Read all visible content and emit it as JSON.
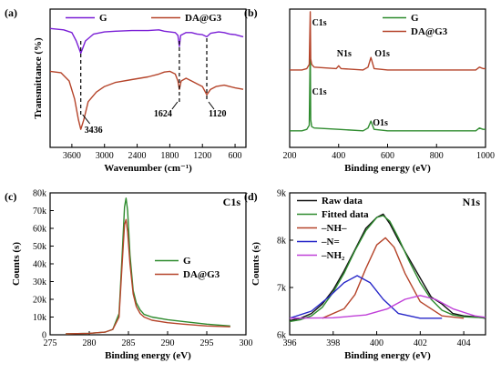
{
  "chart_data": [
    {
      "panel_label": "(a)",
      "type": "line",
      "xlabel": "Wavenumber (cm⁻¹)",
      "ylabel": "Transmittance (%)",
      "xlim": [
        4000,
        400
      ],
      "x_ticks": [
        "3600",
        "3000",
        "2400",
        "1800",
        "1200",
        "600"
      ],
      "y_ticks": [],
      "series": [
        {
          "name": "G",
          "color": "#7a1fd6",
          "x": [
            4000,
            3750,
            3600,
            3520,
            3436,
            3350,
            3200,
            3000,
            2800,
            2500,
            2200,
            2000,
            1900,
            1800,
            1700,
            1650,
            1624,
            1600,
            1500,
            1400,
            1300,
            1200,
            1120,
            1050,
            900,
            800,
            700,
            600,
            450
          ],
          "y": [
            0.86,
            0.85,
            0.83,
            0.77,
            0.68,
            0.77,
            0.82,
            0.835,
            0.84,
            0.845,
            0.845,
            0.85,
            0.84,
            0.835,
            0.83,
            0.81,
            0.73,
            0.81,
            0.83,
            0.83,
            0.82,
            0.815,
            0.8,
            0.825,
            0.835,
            0.83,
            0.82,
            0.815,
            0.8
          ]
        },
        {
          "name": "DA@G3",
          "color": "#b5442a",
          "x": [
            4000,
            3800,
            3650,
            3550,
            3480,
            3436,
            3380,
            3300,
            3150,
            3000,
            2800,
            2500,
            2200,
            2000,
            1900,
            1800,
            1700,
            1650,
            1624,
            1590,
            1500,
            1400,
            1300,
            1200,
            1120,
            1050,
            950,
            800,
            700,
            600,
            450
          ],
          "y": [
            0.55,
            0.54,
            0.48,
            0.35,
            0.2,
            0.13,
            0.2,
            0.33,
            0.4,
            0.44,
            0.47,
            0.49,
            0.51,
            0.53,
            0.545,
            0.55,
            0.53,
            0.48,
            0.42,
            0.48,
            0.5,
            0.48,
            0.46,
            0.44,
            0.38,
            0.42,
            0.44,
            0.45,
            0.44,
            0.43,
            0.42
          ]
        }
      ],
      "annotations": [
        "3436",
        "1624",
        "1120"
      ]
    },
    {
      "panel_label": "(b)",
      "type": "line",
      "xlabel": "Binding energy (eV)",
      "ylabel": "",
      "xlim": [
        200,
        1000
      ],
      "x_ticks": [
        "200",
        "400",
        "600",
        "800",
        "1000"
      ],
      "series": [
        {
          "name": "G",
          "color": "#2e8b2e",
          "x": [
            200,
            250,
            270,
            280,
            284,
            286,
            290,
            300,
            400,
            500,
            520,
            532,
            545,
            600,
            800,
            960,
            975,
            990,
            1000
          ],
          "y": [
            0.12,
            0.12,
            0.13,
            0.16,
            0.74,
            0.2,
            0.15,
            0.14,
            0.13,
            0.12,
            0.14,
            0.19,
            0.13,
            0.12,
            0.12,
            0.12,
            0.14,
            0.13,
            0.13
          ]
        },
        {
          "name": "DA@G3",
          "color": "#b5442a",
          "x": [
            200,
            250,
            270,
            280,
            284,
            286,
            290,
            300,
            390,
            400,
            410,
            500,
            520,
            532,
            545,
            600,
            800,
            960,
            975,
            990,
            1000
          ],
          "y": [
            0.56,
            0.56,
            0.57,
            0.6,
            0.98,
            0.64,
            0.6,
            0.58,
            0.57,
            0.59,
            0.57,
            0.56,
            0.58,
            0.65,
            0.57,
            0.56,
            0.56,
            0.56,
            0.58,
            0.57,
            0.57
          ]
        }
      ],
      "annotations": [
        "C1s",
        "N1s",
        "O1s",
        "C1s",
        "O1s"
      ]
    },
    {
      "panel_label": "(c)",
      "type": "line",
      "title": "C1s",
      "xlabel": "Binding energy (eV)",
      "ylabel": "Counts (s)",
      "xlim": [
        275,
        300
      ],
      "ylim": [
        0,
        80000
      ],
      "x_ticks": [
        "275",
        "280",
        "285",
        "290",
        "295",
        "300"
      ],
      "y_ticks": [
        "0",
        "10k",
        "20k",
        "30k",
        "40k",
        "50k",
        "60k",
        "70k",
        "80k"
      ],
      "series": [
        {
          "name": "G",
          "color": "#2e8b2e",
          "x": [
            277,
            280,
            282,
            283,
            283.8,
            284.2,
            284.5,
            284.7,
            284.9,
            285.2,
            285.6,
            286,
            286.5,
            287,
            288,
            290,
            292,
            295,
            298
          ],
          "y": [
            500,
            800,
            1500,
            3000,
            12000,
            45000,
            72000,
            77000,
            70000,
            45000,
            25000,
            18000,
            14000,
            11500,
            10000,
            8500,
            7500,
            6000,
            5000
          ]
        },
        {
          "name": "DA@G3",
          "color": "#b5442a",
          "x": [
            277,
            280,
            282,
            283,
            283.8,
            284.2,
            284.5,
            284.7,
            284.9,
            285.2,
            285.6,
            286,
            286.5,
            287,
            288,
            290,
            292,
            295,
            298
          ],
          "y": [
            500,
            800,
            1500,
            3000,
            10000,
            40000,
            62000,
            65000,
            58000,
            40000,
            23000,
            16000,
            12000,
            10000,
            8200,
            6800,
            6000,
            5000,
            4500
          ]
        }
      ]
    },
    {
      "panel_label": "(d)",
      "type": "line",
      "title": "N1s",
      "xlabel": "Binding energy (eV)",
      "ylabel": "Counts (s)",
      "xlim": [
        396,
        405
      ],
      "ylim": [
        6000,
        9000
      ],
      "x_ticks": [
        "396",
        "398",
        "400",
        "402",
        "404"
      ],
      "y_ticks": [
        "6k",
        "7k",
        "8k",
        "9k"
      ],
      "series": [
        {
          "name": "Raw data",
          "color": "#111111",
          "x": [
            396,
            396.5,
            397,
            397.5,
            398,
            398.5,
            399,
            399.5,
            400,
            400.3,
            400.6,
            401,
            401.5,
            402,
            402.5,
            403,
            403.5,
            404,
            404.5,
            405
          ],
          "y": [
            6300,
            6350,
            6450,
            6650,
            6950,
            7350,
            7800,
            8250,
            8480,
            8550,
            8350,
            8000,
            7600,
            7200,
            6800,
            6650,
            6450,
            6400,
            6380,
            6350
          ]
        },
        {
          "name": "Fitted data",
          "color": "#2e8b2e",
          "x": [
            396,
            396.5,
            397,
            397.5,
            398,
            398.5,
            399,
            399.5,
            400,
            400.3,
            400.6,
            401,
            401.5,
            402,
            402.5,
            403,
            403.5,
            404,
            404.5,
            405
          ],
          "y": [
            6280,
            6320,
            6400,
            6580,
            6900,
            7300,
            7780,
            8200,
            8480,
            8520,
            8400,
            8050,
            7550,
            7100,
            6750,
            6520,
            6420,
            6380,
            6370,
            6360
          ]
        },
        {
          "name": "–NH–",
          "color": "#b5442a",
          "x": [
            397.5,
            398.5,
            399,
            399.5,
            400,
            400.4,
            400.8,
            401.3,
            402,
            403,
            404
          ],
          "y": [
            6350,
            6550,
            6850,
            7400,
            7900,
            8050,
            7850,
            7300,
            6700,
            6400,
            6350
          ]
        },
        {
          "name": "–N=",
          "color": "#2626c8",
          "x": [
            396,
            397,
            397.8,
            398.5,
            399.1,
            399.7,
            400.3,
            401,
            402,
            403
          ],
          "y": [
            6350,
            6500,
            6800,
            7100,
            7250,
            7100,
            6750,
            6450,
            6350,
            6350
          ]
        },
        {
          "name": "–NH₂",
          "color": "#c040d8",
          "x": [
            396,
            398,
            399.5,
            400.5,
            401.3,
            402,
            402.7,
            403.5,
            404.5,
            405
          ],
          "y": [
            6350,
            6360,
            6420,
            6550,
            6750,
            6830,
            6750,
            6550,
            6400,
            6370
          ]
        }
      ]
    }
  ]
}
